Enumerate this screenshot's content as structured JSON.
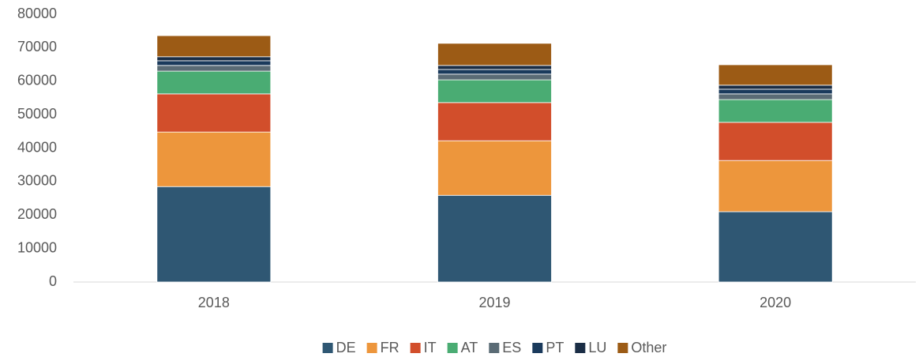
{
  "chart_data": {
    "type": "stacked_bar",
    "categories": [
      "2018",
      "2019",
      "2020"
    ],
    "series": [
      {
        "name": "DE",
        "color": "#2f5773",
        "values": [
          28500,
          25900,
          21000
        ]
      },
      {
        "name": "FR",
        "color": "#ed963c",
        "values": [
          16300,
          16300,
          15300
        ]
      },
      {
        "name": "IT",
        "color": "#d24e2b",
        "values": [
          11400,
          11400,
          11400
        ]
      },
      {
        "name": "AT",
        "color": "#4aac73",
        "values": [
          6800,
          6800,
          6800
        ]
      },
      {
        "name": "ES",
        "color": "#5a6b75",
        "values": [
          1700,
          1700,
          1700
        ]
      },
      {
        "name": "PT",
        "color": "#1a3a5c",
        "values": [
          1400,
          1400,
          1400
        ]
      },
      {
        "name": "LU",
        "color": "#1a2d45",
        "values": [
          1200,
          1200,
          1200
        ]
      },
      {
        "name": "Other",
        "color": "#9c5b15",
        "values": [
          6300,
          6600,
          6100
        ]
      }
    ],
    "ylim": [
      0,
      80000
    ],
    "yticks": [
      0,
      10000,
      20000,
      30000,
      40000,
      50000,
      60000,
      70000,
      80000
    ],
    "grid": false,
    "legend": "bottom"
  }
}
